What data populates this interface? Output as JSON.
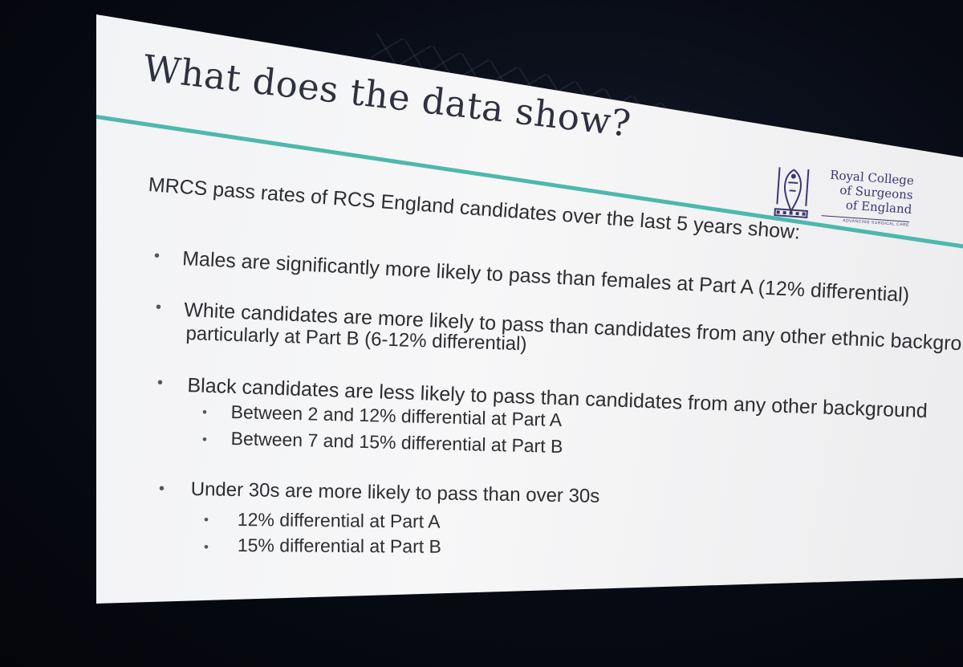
{
  "slide": {
    "title": "What does the data show?",
    "logo": {
      "line1": "Royal College",
      "line2": "of Surgeons",
      "line3": "of England",
      "tagline": "ADVANCING SURGICAL CARE"
    },
    "intro": "MRCS pass rates of RCS England candidates over the last 5 years show:",
    "bullets": [
      {
        "text": "Males are significantly more likely to pass than females at Part A (12% differential)"
      },
      {
        "text_line1": "White candidates are more likely to pass than candidates from any other ethnic background,",
        "text_line2": "particularly at Part B (6-12% differential)"
      },
      {
        "text": "Black candidates are less likely to pass than candidates from any other background",
        "sub": [
          "Between 2 and 12% differential at Part A",
          "Between 7 and 15% differential at Part B"
        ]
      },
      {
        "text": "Under 30s are more likely to pass than over 30s",
        "sub": [
          "12% differential at Part A",
          "15% differential at Part B"
        ]
      }
    ]
  },
  "colors": {
    "title": "#2f3140",
    "accent_rule": "#4db8ad",
    "logo": "#3b3576",
    "body_text": "#2d2d32"
  }
}
